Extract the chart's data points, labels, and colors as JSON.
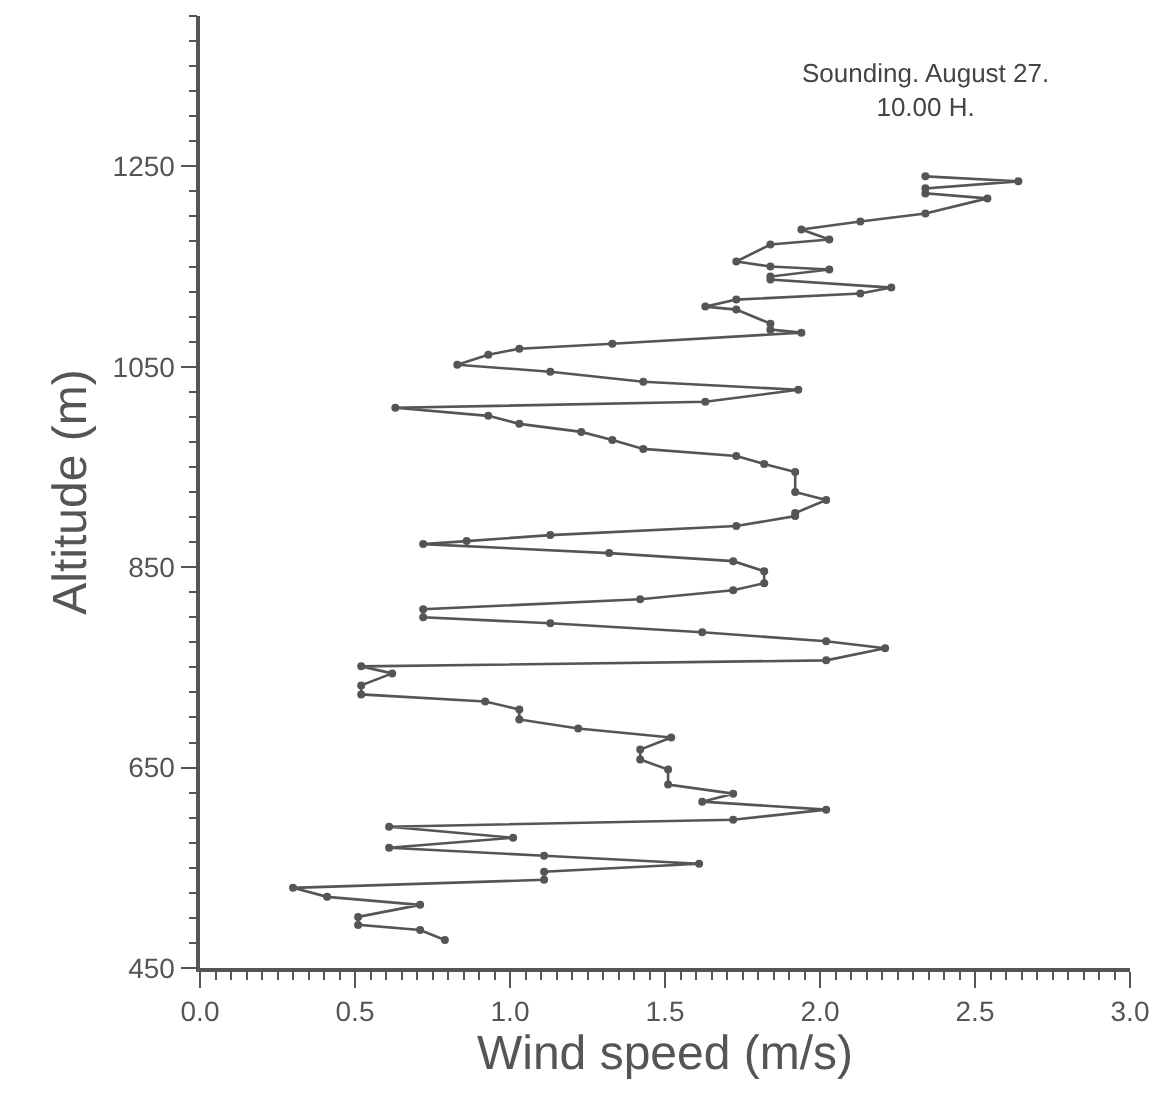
{
  "chart_data": {
    "type": "line",
    "xlabel": "Wind speed (m/s)",
    "ylabel": "Altitude (m)",
    "annotations": [
      "Sounding. August 27.\n10.00 H."
    ],
    "series": [
      {
        "color": "#555555",
        "x": [
          0.79,
          0.71,
          0.51,
          0.51,
          0.71,
          0.41,
          0.3,
          1.11,
          1.11,
          1.61,
          1.11,
          0.61,
          1.01,
          0.61,
          1.72,
          2.02,
          1.62,
          1.72,
          1.51,
          1.51,
          1.42,
          1.42,
          1.52,
          1.22,
          1.03,
          1.03,
          0.92,
          0.52,
          0.52,
          0.62,
          0.52,
          2.02,
          2.21,
          2.02,
          1.62,
          1.13,
          0.72,
          0.72,
          1.42,
          1.72,
          1.82,
          1.82,
          1.72,
          1.32,
          0.72,
          0.86,
          1.13,
          1.73,
          1.92,
          1.92,
          2.02,
          1.92,
          1.92,
          1.82,
          1.73,
          1.43,
          1.33,
          1.23,
          1.03,
          0.93,
          0.63,
          1.63,
          1.93,
          1.43,
          1.13,
          0.83,
          0.93,
          1.03,
          1.33,
          1.94,
          1.84,
          1.84,
          1.73,
          1.63,
          1.73,
          2.13,
          2.23,
          1.84,
          1.84,
          2.03,
          1.84,
          1.73,
          1.84,
          2.03,
          1.94,
          2.13,
          2.34,
          2.54,
          2.34,
          2.34,
          2.64,
          2.34
        ],
        "values": [
          478,
          488,
          493,
          501,
          513,
          521,
          530,
          538,
          546,
          554,
          562,
          570,
          580,
          591,
          598,
          608,
          616,
          624,
          633,
          648,
          658,
          668,
          680,
          689,
          698,
          708,
          716,
          723,
          732,
          744,
          751,
          757,
          769,
          776,
          785,
          794,
          800,
          808,
          818,
          827,
          834,
          846,
          856,
          864,
          873,
          876,
          882,
          891,
          901,
          904,
          917,
          925,
          945,
          953,
          961,
          968,
          977,
          985,
          993,
          1001,
          1009,
          1015,
          1027,
          1035,
          1045,
          1052,
          1062,
          1068,
          1073,
          1084,
          1087,
          1093,
          1107,
          1110,
          1117,
          1123,
          1129,
          1137,
          1140,
          1147,
          1150,
          1155,
          1172,
          1177,
          1187,
          1195,
          1203,
          1218,
          1223,
          1228,
          1235,
          1240
        ]
      }
    ],
    "xlim": [
      0,
      3
    ],
    "xticks": [
      {
        "value": 0,
        "label": "0.0"
      },
      {
        "value": 0.5,
        "label": "0.5"
      },
      {
        "value": 1,
        "label": "1.0"
      },
      {
        "value": 1.5,
        "label": "1.5"
      },
      {
        "value": 2,
        "label": "2.0"
      },
      {
        "value": 2.5,
        "label": "2.5"
      },
      {
        "value": 3,
        "label": "3.0"
      }
    ],
    "ylim": [
      450,
      1400
    ],
    "yticks": [
      450,
      650,
      850,
      1050,
      1250
    ],
    "grid": false,
    "marker": "circle",
    "line_style": "solid"
  }
}
